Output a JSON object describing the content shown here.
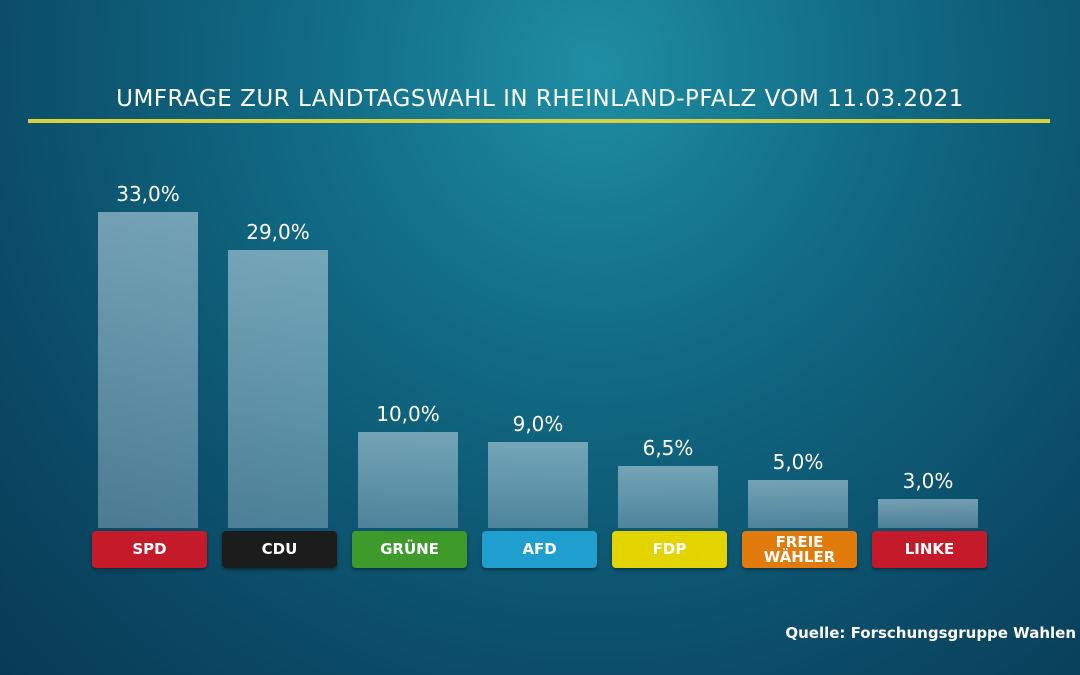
{
  "chart_data": {
    "type": "bar",
    "title": "UMFRAGE ZUR LANDTAGSWAHL IN RHEINLAND-PFALZ VOM 11.03.2021",
    "categories": [
      "SPD",
      "CDU",
      "GRÜNE",
      "AFD",
      "FDP",
      "FREIE WÄHLER",
      "LINKE"
    ],
    "values": [
      33,
      29,
      10,
      9,
      6.5,
      5,
      3
    ],
    "value_labels": [
      "33,0%",
      "29,0%",
      "10,0%",
      "9,0%",
      "6,5%",
      "5,0%",
      "3,0%"
    ],
    "colors": [
      "#c41a2a",
      "#1c1c1c",
      "#3f9a2c",
      "#1e9fcf",
      "#e3d400",
      "#e17c0c",
      "#c41a2a"
    ],
    "source": "Quelle: Forschungsgruppe Wahlen"
  }
}
